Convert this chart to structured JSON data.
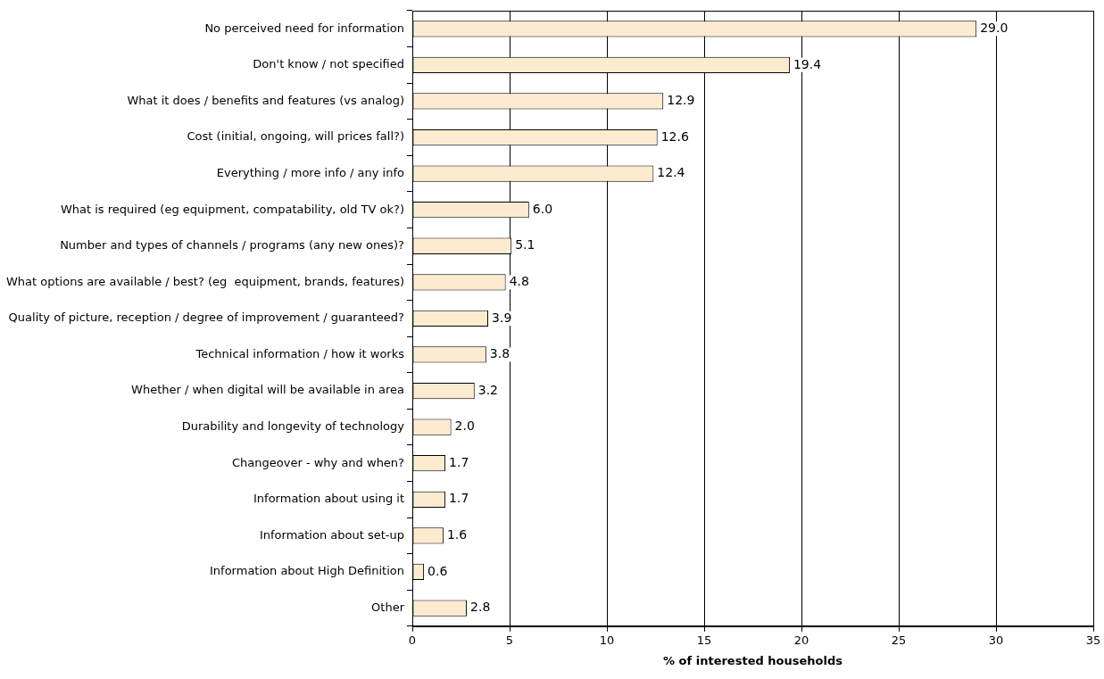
{
  "chart_data": {
    "type": "bar",
    "orientation": "horizontal",
    "xlabel": "% of interested households",
    "categories": [
      "No perceived need for information",
      "Don't know / not specified",
      "What it does / benefits and features (vs analog)",
      "Cost (initial, ongoing, will prices fall?)",
      "Everything / more info / any info",
      "What is required (eg equipment, compatability, old TV ok?)",
      "Number and types of channels / programs (any new ones)?",
      "What options are available / best? (eg  equipment, brands, features)",
      "Quality of picture, reception / degree of improvement / guaranteed?",
      "Technical information / how it works",
      "Whether / when digital will be available in area",
      "Durability and longevity of technology",
      "Changeover - why and when?",
      "Information about using it",
      "Information about set-up",
      "Information about High Definition",
      "Other"
    ],
    "values": [
      29.0,
      19.4,
      12.9,
      12.6,
      12.4,
      6.0,
      5.1,
      4.8,
      3.9,
      3.8,
      3.2,
      2.0,
      1.7,
      1.7,
      1.6,
      0.6,
      2.8
    ],
    "value_labels": [
      "29.0",
      "19.4",
      "12.9",
      "12.6",
      "12.4",
      "6.0",
      "5.1",
      "4.8",
      "3.9",
      "3.8",
      "3.2",
      "2.0",
      "1.7",
      "1.7",
      "1.6",
      "0.6",
      "2.8"
    ],
    "color": "#fdebd0",
    "xlim": [
      0,
      35
    ],
    "xticks": [
      0,
      5,
      10,
      15,
      20,
      25,
      30,
      35
    ],
    "grid": "x",
    "legend": false
  }
}
